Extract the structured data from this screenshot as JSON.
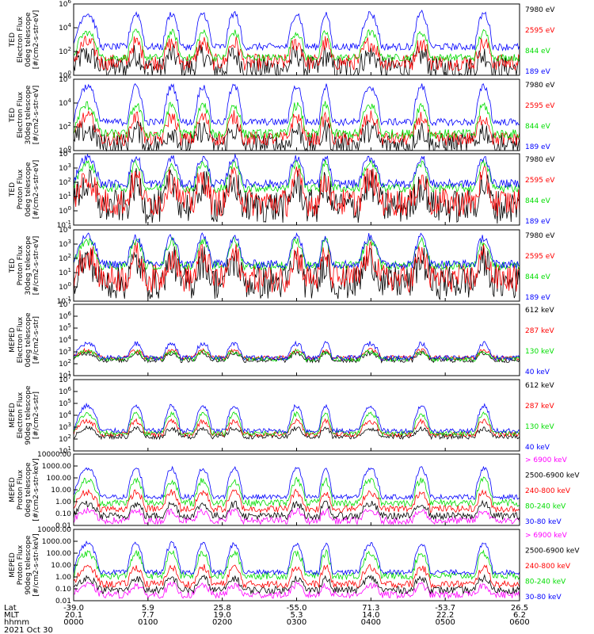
{
  "chart_data": [
    {
      "type": "line",
      "ylabel_lines": [
        "TED",
        "Electron Flux",
        "0deg telescope",
        "[#/cm2-s-str-eV]"
      ],
      "log": true,
      "ylim_exp": [
        0,
        6
      ],
      "tick_exps": [
        0,
        2,
        4,
        6
      ],
      "series": [
        {
          "name": "7980 eV",
          "color": "#000000",
          "base": 0.6,
          "noise": 1.0,
          "peak": 1.1
        },
        {
          "name": "2595 eV",
          "color": "#ff0000",
          "base": 1.1,
          "noise": 0.7,
          "peak": 1.6
        },
        {
          "name": "844 eV",
          "color": "#00dd00",
          "base": 1.5,
          "noise": 0.3,
          "peak": 2.1
        },
        {
          "name": "189 eV",
          "color": "#0000ff",
          "base": 2.4,
          "noise": 0.3,
          "peak": 2.8
        }
      ]
    },
    {
      "type": "line",
      "ylabel_lines": [
        "TED",
        "Electron Flux",
        "30deg telescope",
        "[#/cm2-s-str-eV]"
      ],
      "log": true,
      "ylim_exp": [
        0,
        6
      ],
      "tick_exps": [
        0,
        2,
        4,
        6
      ],
      "series": [
        {
          "name": "7980 eV",
          "color": "#000000",
          "base": 0.5,
          "noise": 1.0,
          "peak": 1.2
        },
        {
          "name": "2595 eV",
          "color": "#ff0000",
          "base": 1.0,
          "noise": 0.6,
          "peak": 1.8
        },
        {
          "name": "844 eV",
          "color": "#00dd00",
          "base": 1.4,
          "noise": 0.4,
          "peak": 2.4
        },
        {
          "name": "189 eV",
          "color": "#0000ff",
          "base": 2.4,
          "noise": 0.3,
          "peak": 3.0
        }
      ]
    },
    {
      "type": "line",
      "ylabel_lines": [
        "TED",
        "Proton Flux",
        "0deg telescope",
        "[#/cm2-s-str-eV]"
      ],
      "log": true,
      "ylim_exp": [
        -1,
        4
      ],
      "tick_exps": [
        -1,
        0,
        1,
        2,
        3,
        4
      ],
      "series": [
        {
          "name": "7980 eV",
          "color": "#000000",
          "base": 0.3,
          "noise": 1.2,
          "peak": 1.5
        },
        {
          "name": "2595 eV",
          "color": "#ff0000",
          "base": 0.6,
          "noise": 1.0,
          "peak": 1.6
        },
        {
          "name": "844 eV",
          "color": "#00dd00",
          "base": 1.6,
          "noise": 0.3,
          "peak": 1.7
        },
        {
          "name": "189 eV",
          "color": "#0000ff",
          "base": 1.9,
          "noise": 0.3,
          "peak": 1.8
        }
      ]
    },
    {
      "type": "line",
      "ylabel_lines": [
        "TED",
        "Proton Flux",
        "30deg telescope",
        "[#/cm2-s-str-eV]"
      ],
      "log": true,
      "ylim_exp": [
        -1,
        4
      ],
      "tick_exps": [
        -1,
        0,
        1,
        2,
        3,
        4
      ],
      "series": [
        {
          "name": "7980 eV",
          "color": "#000000",
          "base": 0.3,
          "noise": 1.2,
          "peak": 1.5
        },
        {
          "name": "2595 eV",
          "color": "#ff0000",
          "base": 0.6,
          "noise": 1.0,
          "peak": 1.6
        },
        {
          "name": "844 eV",
          "color": "#00dd00",
          "base": 1.5,
          "noise": 0.3,
          "peak": 1.7
        },
        {
          "name": "189 eV",
          "color": "#0000ff",
          "base": 1.6,
          "noise": 0.3,
          "peak": 1.9
        }
      ]
    },
    {
      "type": "line",
      "ylabel_lines": [
        "MEPED",
        "Electron Flux",
        "0deg telescope",
        "[#/cm2-s-str]"
      ],
      "log": true,
      "ylim_exp": [
        1,
        7
      ],
      "tick_exps": [
        1,
        2,
        3,
        4,
        5,
        6,
        7
      ],
      "series": [
        {
          "name": "612 keV",
          "color": "#000000",
          "base": 2.3,
          "noise": 0.2,
          "peak": 0.6
        },
        {
          "name": "287 keV",
          "color": "#ff0000",
          "base": 2.5,
          "noise": 0.2,
          "peak": 0.6
        },
        {
          "name": "130 keV",
          "color": "#00dd00",
          "base": 2.4,
          "noise": 0.2,
          "peak": 0.6
        },
        {
          "name": "40 keV",
          "color": "#0000ff",
          "base": 2.5,
          "noise": 0.2,
          "peak": 1.2
        }
      ]
    },
    {
      "type": "line",
      "ylabel_lines": [
        "MEPED",
        "Electron Flux",
        "90deg telescope",
        "[#/cm2-s-str]"
      ],
      "log": true,
      "ylim_exp": [
        1,
        7
      ],
      "tick_exps": [
        1,
        2,
        3,
        4,
        5,
        6,
        7
      ],
      "series": [
        {
          "name": "612 keV",
          "color": "#000000",
          "base": 2.2,
          "noise": 0.2,
          "peak": 0.7
        },
        {
          "name": "287 keV",
          "color": "#ff0000",
          "base": 2.4,
          "noise": 0.2,
          "peak": 1.1
        },
        {
          "name": "130 keV",
          "color": "#00dd00",
          "base": 2.5,
          "noise": 0.2,
          "peak": 1.6
        },
        {
          "name": "40 keV",
          "color": "#0000ff",
          "base": 2.7,
          "noise": 0.2,
          "peak": 2.1
        }
      ]
    },
    {
      "type": "line",
      "ylabel_lines": [
        "MEPED",
        "Proton Flux",
        "0deg telescope",
        "[#/cm2-s-str-keV]"
      ],
      "log": true,
      "ylim_exp": [
        -2,
        4
      ],
      "tick_exps": [
        -2,
        -1,
        0,
        1,
        2,
        3,
        4
      ],
      "tick_labels": [
        "0.01",
        "0.10",
        "1.00",
        "10.00",
        "100.00",
        "1000.00",
        "10000.00"
      ],
      "series": [
        {
          "name": "> 6900 keV",
          "color": "#ff00ff",
          "base": -1.6,
          "noise": 0.3,
          "peak": 0.8
        },
        {
          "name": "2500-6900 keV",
          "color": "#000000",
          "base": -1.2,
          "noise": 0.3,
          "peak": 1.0
        },
        {
          "name": "240-800 keV",
          "color": "#ff0000",
          "base": -0.6,
          "noise": 0.3,
          "peak": 1.4
        },
        {
          "name": "80-240 keV",
          "color": "#00dd00",
          "base": -0.1,
          "noise": 0.3,
          "peak": 1.9
        },
        {
          "name": "30-80 keV",
          "color": "#0000ff",
          "base": 0.4,
          "noise": 0.2,
          "peak": 2.4
        }
      ]
    },
    {
      "type": "line",
      "ylabel_lines": [
        "MEPED",
        "Proton Flux",
        "90deg telescope",
        "[#/cm2-s-str-keV]"
      ],
      "log": true,
      "ylim_exp": [
        -2,
        4
      ],
      "tick_exps": [
        -2,
        -1,
        0,
        1,
        2,
        3,
        4
      ],
      "tick_labels": [
        "0.01",
        "0.10",
        "1.00",
        "10.00",
        "100.00",
        "1000.00",
        "10000.00"
      ],
      "series": [
        {
          "name": "> 6900 keV",
          "color": "#ff00ff",
          "base": -1.5,
          "noise": 0.3,
          "peak": 0.8
        },
        {
          "name": "2500-6900 keV",
          "color": "#000000",
          "base": -1.1,
          "noise": 0.3,
          "peak": 1.0
        },
        {
          "name": "240-800 keV",
          "color": "#ff0000",
          "base": -0.6,
          "noise": 0.3,
          "peak": 1.4
        },
        {
          "name": "80-240 keV",
          "color": "#00dd00",
          "base": 0.1,
          "noise": 0.3,
          "peak": 1.9
        },
        {
          "name": "30-80 keV",
          "color": "#0000ff",
          "base": 0.4,
          "noise": 0.2,
          "peak": 2.4
        }
      ]
    }
  ],
  "x_axis": {
    "row_labels": [
      "Lat",
      "MLT",
      "hhmm"
    ],
    "date": "2021 Oct 30",
    "ticks": [
      {
        "lat": "-39.0",
        "mlt": "20.1",
        "hhmm": "0000"
      },
      {
        "lat": "5.9",
        "mlt": "7.7",
        "hhmm": "0100"
      },
      {
        "lat": "25.8",
        "mlt": "19.0",
        "hhmm": "0200"
      },
      {
        "lat": "-55.0",
        "mlt": "5.3",
        "hhmm": "0300"
      },
      {
        "lat": "71.3",
        "mlt": "14.0",
        "hhmm": "0400"
      },
      {
        "lat": "-53.7",
        "mlt": "22.2",
        "hhmm": "0500"
      },
      {
        "lat": "26.5",
        "mlt": "6.2",
        "hhmm": "0600"
      }
    ]
  }
}
